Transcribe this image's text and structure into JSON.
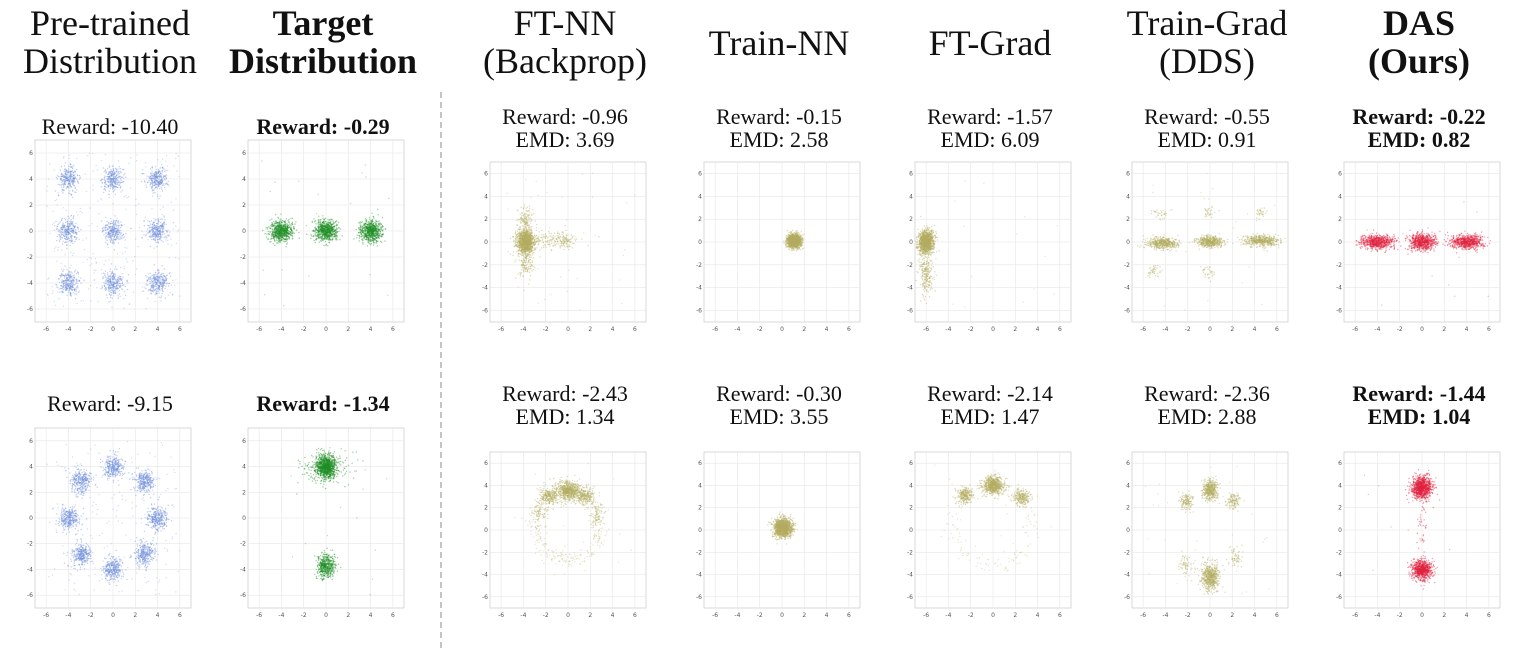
{
  "columns": [
    {
      "key": "pretrained",
      "title_lines": [
        "Pre-trained",
        "Distribution"
      ],
      "bold": false
    },
    {
      "key": "target",
      "title_lines": [
        "Target",
        "Distribution"
      ],
      "bold": true
    },
    {
      "key": "ftnn",
      "title_lines": [
        "FT-NN",
        "(Backprop)"
      ],
      "bold": false
    },
    {
      "key": "trainnn",
      "title_lines": [
        "Train-NN"
      ],
      "bold": false
    },
    {
      "key": "ftgrad",
      "title_lines": [
        "FT-Grad"
      ],
      "bold": false
    },
    {
      "key": "traingrad",
      "title_lines": [
        "Train-Grad",
        "(DDS)"
      ],
      "bold": false
    },
    {
      "key": "das",
      "title_lines": [
        "DAS",
        "(Ours)"
      ],
      "bold": true
    }
  ],
  "colors": {
    "blue": "#6f8fdc",
    "green": "#1f8f25",
    "olive": "#b4ad62",
    "red": "#e0213f"
  },
  "axis_ticks": [
    "-6",
    "-4",
    "-2",
    "0",
    "2",
    "4",
    "6"
  ],
  "chart_data": [
    {
      "type": "scatter",
      "row": 1,
      "column": "pretrained",
      "color": "blue",
      "reward_text": "Reward: -10.40",
      "emd_text": "",
      "xlim": [
        -7,
        7
      ],
      "ylim": [
        -7,
        7
      ],
      "grid": true,
      "clusters": [
        {
          "x": -4,
          "y": 4,
          "sx": 0.45,
          "sy": 0.45,
          "n": 260
        },
        {
          "x": 0,
          "y": 4,
          "sx": 0.45,
          "sy": 0.45,
          "n": 260
        },
        {
          "x": 4,
          "y": 4,
          "sx": 0.45,
          "sy": 0.45,
          "n": 260
        },
        {
          "x": -4,
          "y": 0,
          "sx": 0.45,
          "sy": 0.45,
          "n": 260
        },
        {
          "x": 0,
          "y": 0,
          "sx": 0.45,
          "sy": 0.45,
          "n": 260
        },
        {
          "x": 4,
          "y": 0,
          "sx": 0.45,
          "sy": 0.45,
          "n": 260
        },
        {
          "x": -4,
          "y": -4,
          "sx": 0.45,
          "sy": 0.45,
          "n": 260
        },
        {
          "x": 0,
          "y": -4,
          "sx": 0.45,
          "sy": 0.45,
          "n": 260
        },
        {
          "x": 4,
          "y": -4,
          "sx": 0.45,
          "sy": 0.45,
          "n": 260
        }
      ],
      "background_n": 300
    },
    {
      "type": "scatter",
      "row": 1,
      "column": "target",
      "color": "green",
      "reward_text": "Reward: -0.29",
      "emd_text": "",
      "bold": true,
      "xlim": [
        -7,
        7
      ],
      "ylim": [
        -7,
        7
      ],
      "grid": true,
      "clusters": [
        {
          "x": -4,
          "y": 0,
          "sx": 0.5,
          "sy": 0.4,
          "n": 700
        },
        {
          "x": 0,
          "y": 0,
          "sx": 0.5,
          "sy": 0.4,
          "n": 700
        },
        {
          "x": 4,
          "y": 0,
          "sx": 0.5,
          "sy": 0.4,
          "n": 700
        }
      ],
      "background_n": 20
    },
    {
      "type": "scatter",
      "row": 1,
      "column": "ftnn",
      "color": "olive",
      "reward_text": "Reward: -0.96",
      "emd_text": "EMD:  3.69",
      "xlim": [
        -7,
        7
      ],
      "ylim": [
        -7,
        7
      ],
      "grid": true,
      "clusters": [
        {
          "x": -3.8,
          "y": 0,
          "sx": 0.4,
          "sy": 0.55,
          "n": 1200
        },
        {
          "x": -3.8,
          "y": 2,
          "sx": 0.35,
          "sy": 0.6,
          "n": 120
        },
        {
          "x": -3.8,
          "y": -2,
          "sx": 0.35,
          "sy": 0.6,
          "n": 120
        },
        {
          "x": -1.5,
          "y": 0.1,
          "sx": 1.2,
          "sy": 0.4,
          "n": 150
        },
        {
          "x": -0.2,
          "y": 0.1,
          "sx": 0.3,
          "sy": 0.3,
          "n": 60
        }
      ],
      "background_n": 40
    },
    {
      "type": "scatter",
      "row": 1,
      "column": "trainnn",
      "color": "olive",
      "reward_text": "Reward: -0.15",
      "emd_text": "EMD: 2.58",
      "xlim": [
        -7,
        7
      ],
      "ylim": [
        -7,
        7
      ],
      "grid": true,
      "clusters": [
        {
          "x": 1.1,
          "y": 0.1,
          "sx": 0.3,
          "sy": 0.3,
          "n": 1500
        }
      ],
      "background_n": 0
    },
    {
      "type": "scatter",
      "row": 1,
      "column": "ftgrad",
      "color": "olive",
      "reward_text": "Reward: -1.57",
      "emd_text": "EMD: 6.09",
      "xlim": [
        -7,
        7
      ],
      "ylim": [
        -7,
        7
      ],
      "grid": true,
      "clusters": [
        {
          "x": -6,
          "y": 0,
          "sx": 0.35,
          "sy": 0.5,
          "n": 1200
        },
        {
          "x": -6,
          "y": -2.7,
          "sx": 0.3,
          "sy": 0.9,
          "n": 220
        }
      ],
      "background_n": 15
    },
    {
      "type": "scatter",
      "row": 1,
      "column": "traingrad",
      "color": "olive",
      "reward_text": "Reward: -0.55",
      "emd_text": "EMD: 0.91",
      "xlim": [
        -7,
        7
      ],
      "ylim": [
        -7,
        7
      ],
      "grid": true,
      "clusters": [
        {
          "x": -4.2,
          "y": -0.1,
          "sx": 0.7,
          "sy": 0.25,
          "n": 500
        },
        {
          "x": 0,
          "y": 0,
          "sx": 0.55,
          "sy": 0.25,
          "n": 500
        },
        {
          "x": 4.6,
          "y": 0.1,
          "sx": 0.8,
          "sy": 0.25,
          "n": 500
        },
        {
          "x": -4.5,
          "y": 2.6,
          "sx": 0.4,
          "sy": 0.25,
          "n": 30
        },
        {
          "x": 0,
          "y": 2.6,
          "sx": 0.3,
          "sy": 0.25,
          "n": 30
        },
        {
          "x": 4.5,
          "y": 2.6,
          "sx": 0.3,
          "sy": 0.25,
          "n": 30
        },
        {
          "x": -5,
          "y": -2.6,
          "sx": 0.3,
          "sy": 0.25,
          "n": 40
        },
        {
          "x": 0,
          "y": -2.6,
          "sx": 0.3,
          "sy": 0.25,
          "n": 30
        }
      ],
      "background_n": 20
    },
    {
      "type": "scatter",
      "row": 1,
      "column": "das",
      "color": "red",
      "reward_text": "Reward: -0.22",
      "emd_text": "EMD:  0.82",
      "bold": true,
      "xlim": [
        -7,
        7
      ],
      "ylim": [
        -7,
        7
      ],
      "grid": true,
      "clusters": [
        {
          "x": -4,
          "y": 0,
          "sx": 0.75,
          "sy": 0.3,
          "n": 700
        },
        {
          "x": 0,
          "y": 0,
          "sx": 0.6,
          "sy": 0.35,
          "n": 700
        },
        {
          "x": 4,
          "y": 0,
          "sx": 0.75,
          "sy": 0.3,
          "n": 700
        }
      ],
      "background_n": 10
    },
    {
      "type": "scatter",
      "row": 2,
      "column": "pretrained",
      "color": "blue",
      "reward_text": "Reward: -9.15",
      "emd_text": "",
      "xlim": [
        -7,
        7
      ],
      "ylim": [
        -7,
        7
      ],
      "grid": true,
      "clusters": [
        {
          "x": 4,
          "y": 0,
          "sx": 0.45,
          "sy": 0.45,
          "n": 300
        },
        {
          "x": 2.83,
          "y": 2.83,
          "sx": 0.45,
          "sy": 0.45,
          "n": 300
        },
        {
          "x": 0,
          "y": 4,
          "sx": 0.45,
          "sy": 0.45,
          "n": 300
        },
        {
          "x": -2.83,
          "y": 2.83,
          "sx": 0.45,
          "sy": 0.45,
          "n": 300
        },
        {
          "x": -4,
          "y": 0,
          "sx": 0.45,
          "sy": 0.45,
          "n": 300
        },
        {
          "x": -2.83,
          "y": -2.83,
          "sx": 0.45,
          "sy": 0.45,
          "n": 300
        },
        {
          "x": 0,
          "y": -4,
          "sx": 0.45,
          "sy": 0.45,
          "n": 300
        },
        {
          "x": 2.83,
          "y": -2.83,
          "sx": 0.45,
          "sy": 0.45,
          "n": 300
        }
      ],
      "background_n": 200
    },
    {
      "type": "scatter",
      "row": 2,
      "column": "target",
      "color": "green",
      "reward_text": "Reward: -1.34",
      "emd_text": "",
      "bold": true,
      "xlim": [
        -7,
        7
      ],
      "ylim": [
        -7,
        7
      ],
      "grid": true,
      "clusters": [
        {
          "x": 0,
          "y": 4,
          "sx": 0.45,
          "sy": 0.45,
          "n": 1100
        },
        {
          "x": 0,
          "y": -3.7,
          "sx": 0.4,
          "sy": 0.45,
          "n": 500
        },
        {
          "x": 1.5,
          "y": 4,
          "sx": 0.6,
          "sy": 0.6,
          "n": 40
        },
        {
          "x": -1.5,
          "y": 3.8,
          "sx": 0.6,
          "sy": 0.6,
          "n": 40
        }
      ],
      "background_n": 15
    },
    {
      "type": "scatter",
      "row": 2,
      "column": "ftnn",
      "color": "olive",
      "reward_text": "Reward: -2.43",
      "emd_text": "EMD: 1.34",
      "xlim": [
        -7,
        7
      ],
      "ylim": [
        -7,
        7
      ],
      "grid": true,
      "clusters": [
        {
          "x": 0,
          "y": 3.5,
          "sx": 0.55,
          "sy": 0.45,
          "n": 650
        },
        {
          "x": -1.7,
          "y": 3,
          "sx": 0.45,
          "sy": 0.4,
          "n": 250
        },
        {
          "x": 1.5,
          "y": 3,
          "sx": 0.45,
          "sy": 0.4,
          "n": 250
        },
        {
          "x": -2.6,
          "y": 1.3,
          "sx": 0.35,
          "sy": 0.6,
          "n": 80
        },
        {
          "x": 2.6,
          "y": 1.3,
          "sx": 0.35,
          "sy": 0.6,
          "n": 80
        }
      ],
      "ring": {
        "r": 3,
        "n": 320
      },
      "background_n": 20
    },
    {
      "type": "scatter",
      "row": 2,
      "column": "trainnn",
      "color": "olive",
      "reward_text": "Reward: -0.30",
      "emd_text": "EMD: 3.55",
      "xlim": [
        -7,
        7
      ],
      "ylim": [
        -7,
        7
      ],
      "grid": true,
      "clusters": [
        {
          "x": 0.1,
          "y": 0.2,
          "sx": 0.4,
          "sy": 0.4,
          "n": 1500
        }
      ],
      "background_n": 0
    },
    {
      "type": "scatter",
      "row": 2,
      "column": "ftgrad",
      "color": "olive",
      "reward_text": "Reward: -2.14",
      "emd_text": "EMD: 1.47",
      "xlim": [
        -7,
        7
      ],
      "ylim": [
        -7,
        7
      ],
      "grid": true,
      "clusters": [
        {
          "x": 0,
          "y": 4,
          "sx": 0.45,
          "sy": 0.4,
          "n": 700
        },
        {
          "x": -2.5,
          "y": 3.1,
          "sx": 0.35,
          "sy": 0.35,
          "n": 250
        },
        {
          "x": 2.5,
          "y": 2.9,
          "sx": 0.35,
          "sy": 0.35,
          "n": 230
        }
      ],
      "ring": {
        "r": 3.5,
        "n": 150
      },
      "background_n": 15
    },
    {
      "type": "scatter",
      "row": 2,
      "column": "traingrad",
      "color": "olive",
      "reward_text": "Reward: -2.36",
      "emd_text": "EMD: 2.88",
      "xlim": [
        -7,
        7
      ],
      "ylim": [
        -7,
        7
      ],
      "grid": true,
      "clusters": [
        {
          "x": 0,
          "y": 3.6,
          "sx": 0.35,
          "sy": 0.45,
          "n": 450
        },
        {
          "x": 0,
          "y": -4.2,
          "sx": 0.4,
          "sy": 0.6,
          "n": 600
        },
        {
          "x": -2.1,
          "y": 2.5,
          "sx": 0.3,
          "sy": 0.4,
          "n": 140
        },
        {
          "x": 2.1,
          "y": 2.6,
          "sx": 0.3,
          "sy": 0.4,
          "n": 120
        },
        {
          "x": -2.2,
          "y": -3.2,
          "sx": 0.3,
          "sy": 0.5,
          "n": 60
        },
        {
          "x": 2.3,
          "y": -2.5,
          "sx": 0.3,
          "sy": 0.5,
          "n": 60
        }
      ],
      "background_n": 30
    },
    {
      "type": "scatter",
      "row": 2,
      "column": "das",
      "color": "red",
      "reward_text": "Reward: -1.44",
      "emd_text": "EMD: 1.04",
      "bold": true,
      "xlim": [
        -7,
        7
      ],
      "ylim": [
        -7,
        7
      ],
      "grid": true,
      "clusters": [
        {
          "x": 0,
          "y": 3.8,
          "sx": 0.45,
          "sy": 0.5,
          "n": 1000
        },
        {
          "x": 0,
          "y": -3.6,
          "sx": 0.45,
          "sy": 0.45,
          "n": 800
        },
        {
          "x": 0,
          "y": 0,
          "sx": 0.2,
          "sy": 1.6,
          "n": 40
        }
      ],
      "background_n": 10
    }
  ]
}
